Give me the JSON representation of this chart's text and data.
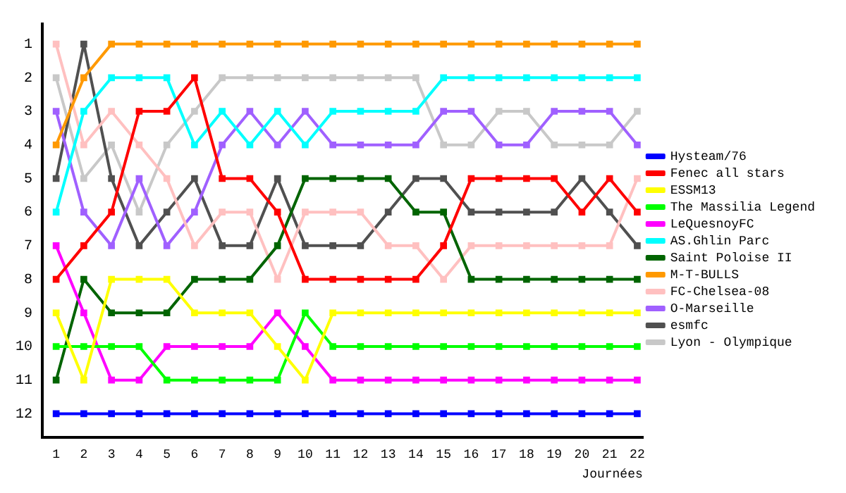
{
  "chart_data": {
    "type": "line",
    "xlabel": "Journées",
    "x": [
      1,
      2,
      3,
      4,
      5,
      6,
      7,
      8,
      9,
      10,
      11,
      12,
      13,
      14,
      15,
      16,
      17,
      18,
      19,
      20,
      21,
      22
    ],
    "xlim": [
      0.5,
      22.2
    ],
    "xticks": [
      1,
      2,
      3,
      4,
      5,
      6,
      7,
      8,
      9,
      10,
      11,
      12,
      13,
      14,
      15,
      16,
      17,
      18,
      19,
      20,
      21,
      22
    ],
    "ylim": [
      12.7,
      0.4
    ],
    "yticks": [
      1,
      2,
      3,
      4,
      5,
      6,
      7,
      8,
      9,
      10,
      11,
      12
    ],
    "grid": false,
    "legend": "right",
    "marker": "square",
    "line_style": "solid",
    "series": [
      {
        "name": "Hysteam/76",
        "color": "#0000ff",
        "values": [
          12,
          12,
          12,
          12,
          12,
          12,
          12,
          12,
          12,
          12,
          12,
          12,
          12,
          12,
          12,
          12,
          12,
          12,
          12,
          12,
          12,
          12
        ]
      },
      {
        "name": "Fenec all stars",
        "color": "#ff0000",
        "values": [
          8,
          7,
          6,
          3,
          3,
          2,
          5,
          5,
          6,
          8,
          8,
          8,
          8,
          8,
          7,
          5,
          5,
          5,
          5,
          6,
          5,
          6
        ]
      },
      {
        "name": "ESSM13",
        "color": "#ffff00",
        "values": [
          9,
          11,
          8,
          8,
          8,
          9,
          9,
          9,
          10,
          11,
          9,
          9,
          9,
          9,
          9,
          9,
          9,
          9,
          9,
          9,
          9,
          9
        ]
      },
      {
        "name": "The Massilia Legend",
        "color": "#00ff00",
        "values": [
          10,
          10,
          10,
          10,
          11,
          11,
          11,
          11,
          11,
          9,
          10,
          10,
          10,
          10,
          10,
          10,
          10,
          10,
          10,
          10,
          10,
          10
        ]
      },
      {
        "name": "LeQuesnoyFC",
        "color": "#ff00ff",
        "values": [
          7,
          9,
          11,
          11,
          10,
          10,
          10,
          10,
          9,
          10,
          11,
          11,
          11,
          11,
          11,
          11,
          11,
          11,
          11,
          11,
          11,
          11
        ]
      },
      {
        "name": "AS.Ghlin Parc",
        "color": "#00ffff",
        "values": [
          6,
          3,
          2,
          2,
          2,
          4,
          3,
          4,
          3,
          4,
          3,
          3,
          3,
          3,
          2,
          2,
          2,
          2,
          2,
          2,
          2,
          2
        ]
      },
      {
        "name": "Saint Poloise II",
        "color": "#006400",
        "values": [
          11,
          8,
          9,
          9,
          9,
          8,
          8,
          8,
          7,
          5,
          5,
          5,
          5,
          6,
          6,
          8,
          8,
          8,
          8,
          8,
          8,
          8
        ]
      },
      {
        "name": "M-T-BULLS",
        "color": "#ff9900",
        "values": [
          4,
          2,
          1,
          1,
          1,
          1,
          1,
          1,
          1,
          1,
          1,
          1,
          1,
          1,
          1,
          1,
          1,
          1,
          1,
          1,
          1,
          1
        ]
      },
      {
        "name": "FC-Chelsea-08",
        "color": "#ffc0c0",
        "values": [
          1,
          4,
          3,
          4,
          5,
          7,
          6,
          6,
          8,
          6,
          6,
          6,
          7,
          7,
          8,
          7,
          7,
          7,
          7,
          7,
          7,
          5
        ]
      },
      {
        "name": "O-Marseille",
        "color": "#a060ff",
        "values": [
          3,
          6,
          7,
          5,
          7,
          6,
          4,
          3,
          4,
          3,
          4,
          4,
          4,
          4,
          3,
          3,
          4,
          4,
          3,
          3,
          3,
          4
        ]
      },
      {
        "name": "esmfc",
        "color": "#505050",
        "values": [
          5,
          1,
          5,
          7,
          6,
          5,
          7,
          7,
          5,
          7,
          7,
          7,
          6,
          5,
          5,
          6,
          6,
          6,
          6,
          5,
          6,
          7
        ]
      },
      {
        "name": "Lyon - Olympique",
        "color": "#c8c8c8",
        "values": [
          2,
          5,
          4,
          6,
          4,
          3,
          2,
          2,
          2,
          2,
          2,
          2,
          2,
          2,
          4,
          4,
          3,
          3,
          4,
          4,
          4,
          3
        ]
      }
    ]
  }
}
